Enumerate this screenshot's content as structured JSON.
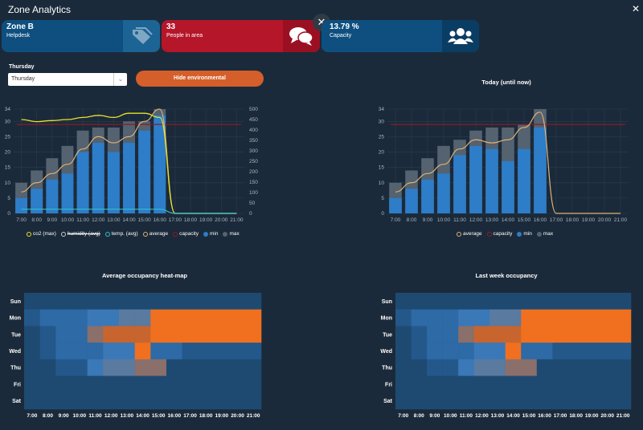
{
  "window": {
    "title": "Zone Analytics"
  },
  "cards": [
    {
      "value": "Zone B",
      "label": "Helpdesk",
      "icon": "tag-icon"
    },
    {
      "value": "33",
      "label": "People in area",
      "icon": "chat-bubbles-icon"
    },
    {
      "value": "13.79 %",
      "label": "Capacity",
      "icon": "users-icon"
    }
  ],
  "controls": {
    "day_label": "Thursday",
    "day_select_value": "Thursday",
    "hide_button": "Hide environmental"
  },
  "colors": {
    "min": "#2d7dc8",
    "max": "#55626f",
    "average": "#e0b274",
    "capacity": "#8a1c24",
    "co2": "#e8e22a",
    "temp": "#2fc0d4",
    "heat_high": "#f07020"
  },
  "chart_data": [
    {
      "type": "bar",
      "title": "",
      "categories": [
        "7:00",
        "8:00",
        "9:00",
        "10:00",
        "11:00",
        "12:00",
        "13:00",
        "14:00",
        "15:00",
        "16:00",
        "17:00",
        "18:00",
        "19:00",
        "20:00",
        "21:00"
      ],
      "series": [
        {
          "name": "min",
          "values": [
            5,
            8,
            11,
            13,
            20,
            23,
            20,
            23,
            27,
            32,
            0,
            0,
            0,
            0,
            0
          ]
        },
        {
          "name": "max",
          "values": [
            10,
            14,
            18,
            22,
            27,
            28,
            28,
            30,
            30,
            34,
            0,
            0,
            0,
            0,
            0
          ]
        },
        {
          "name": "average",
          "values": [
            7,
            10,
            13,
            16,
            21,
            25,
            23,
            25,
            30,
            34,
            0,
            0,
            0,
            0,
            0
          ]
        },
        {
          "name": "capacity",
          "values": [
            29,
            29,
            29,
            29,
            29,
            29,
            29,
            29,
            29,
            29,
            29,
            29,
            29,
            29,
            29
          ]
        },
        {
          "name": "co2 (max)",
          "values": [
            450,
            440,
            445,
            450,
            460,
            470,
            460,
            480,
            480,
            460,
            0,
            0,
            0,
            0,
            0
          ]
        },
        {
          "name": "temp. (avg)",
          "values": [
            20,
            20,
            20,
            20,
            20,
            20,
            20,
            20,
            20,
            20,
            0,
            0,
            0,
            0,
            0
          ]
        }
      ],
      "legend": [
        "co2 (max)",
        "humidity (avg)",
        "temp. (avg)",
        "average",
        "capacity",
        "min",
        "max"
      ],
      "yticks_left": [
        0,
        5,
        10,
        15,
        20,
        25,
        30,
        34
      ],
      "yticks_right": [
        0,
        50,
        100,
        150,
        200,
        250,
        300,
        350,
        400,
        450,
        500
      ],
      "ylim": [
        0,
        34
      ],
      "ylim_right": [
        0,
        500
      ],
      "legend_position": "bottom"
    },
    {
      "type": "bar",
      "title": "Today (until now)",
      "categories": [
        "7:00",
        "8:00",
        "9:00",
        "10:00",
        "11:00",
        "12:00",
        "13:00",
        "14:00",
        "15:00",
        "16:00",
        "17:00",
        "18:00",
        "19:00",
        "20:00",
        "21:00"
      ],
      "series": [
        {
          "name": "min",
          "values": [
            5,
            8,
            11,
            13,
            19,
            22,
            21,
            17,
            21,
            28,
            0,
            0,
            0,
            0,
            0
          ]
        },
        {
          "name": "max",
          "values": [
            10,
            14,
            18,
            22,
            24,
            27,
            28,
            28,
            29,
            34,
            0,
            0,
            0,
            0,
            0
          ]
        },
        {
          "name": "average",
          "values": [
            7,
            10,
            13,
            16,
            21,
            24,
            23,
            24,
            28,
            33,
            0,
            0,
            0,
            0,
            0
          ]
        },
        {
          "name": "capacity",
          "values": [
            29,
            29,
            29,
            29,
            29,
            29,
            29,
            29,
            29,
            29,
            29,
            29,
            29,
            29,
            29
          ]
        }
      ],
      "legend": [
        "average",
        "capacity",
        "min",
        "max"
      ],
      "yticks_left": [
        0,
        5,
        10,
        15,
        20,
        25,
        30,
        34
      ],
      "ylim": [
        0,
        34
      ],
      "legend_position": "bottom"
    },
    {
      "type": "heatmap",
      "title": "Average occupancy heat-map",
      "x": [
        "7:00",
        "8:00",
        "9:00",
        "10:00",
        "11:00",
        "12:00",
        "13:00",
        "14:00",
        "15:00",
        "16:00",
        "17:00",
        "18:00",
        "19:00",
        "20:00",
        "21:00"
      ],
      "y": [
        "Sun",
        "Mon",
        "Tue",
        "Wed",
        "Thu",
        "Fri",
        "Sat"
      ],
      "values": [
        [
          1,
          1,
          1,
          1,
          1,
          1,
          1,
          1,
          1,
          1,
          1,
          1,
          1,
          1,
          1
        ],
        [
          2,
          3,
          3,
          3,
          4,
          4,
          5,
          5,
          8,
          8,
          8,
          8,
          8,
          8,
          8
        ],
        [
          1,
          2,
          3,
          3,
          6,
          7,
          7,
          7,
          8,
          8,
          8,
          8,
          8,
          8,
          8
        ],
        [
          1,
          2,
          3,
          3,
          3,
          4,
          4,
          8,
          3,
          3,
          2,
          2,
          2,
          2,
          2
        ],
        [
          1,
          1,
          2,
          2,
          4,
          5,
          5,
          6,
          6,
          1,
          1,
          1,
          1,
          1,
          1
        ],
        [
          1,
          1,
          1,
          1,
          1,
          1,
          1,
          1,
          1,
          1,
          1,
          1,
          1,
          1,
          1
        ],
        [
          1,
          1,
          1,
          1,
          1,
          1,
          1,
          1,
          1,
          1,
          1,
          1,
          1,
          1,
          1
        ]
      ]
    },
    {
      "type": "heatmap",
      "title": "Last week occupancy",
      "x": [
        "7:00",
        "8:00",
        "9:00",
        "10:00",
        "11:00",
        "12:00",
        "13:00",
        "14:00",
        "15:00",
        "16:00",
        "17:00",
        "18:00",
        "19:00",
        "20:00",
        "21:00"
      ],
      "y": [
        "Sun",
        "Mon",
        "Tue",
        "Wed",
        "Thu",
        "Fri",
        "Sat"
      ],
      "values": [
        [
          1,
          1,
          1,
          1,
          1,
          1,
          1,
          1,
          1,
          1,
          1,
          1,
          1,
          1,
          1
        ],
        [
          2,
          3,
          3,
          3,
          4,
          4,
          5,
          5,
          8,
          8,
          8,
          8,
          8,
          8,
          8
        ],
        [
          1,
          2,
          3,
          3,
          6,
          7,
          7,
          7,
          8,
          8,
          8,
          8,
          8,
          8,
          8
        ],
        [
          1,
          2,
          3,
          3,
          3,
          4,
          4,
          8,
          3,
          3,
          2,
          2,
          2,
          2,
          2
        ],
        [
          1,
          1,
          2,
          2,
          4,
          5,
          5,
          6,
          6,
          1,
          1,
          1,
          1,
          1,
          1
        ],
        [
          1,
          1,
          1,
          1,
          1,
          1,
          1,
          1,
          1,
          1,
          1,
          1,
          1,
          1,
          1
        ],
        [
          1,
          1,
          1,
          1,
          1,
          1,
          1,
          1,
          1,
          1,
          1,
          1,
          1,
          1,
          1
        ]
      ]
    }
  ]
}
